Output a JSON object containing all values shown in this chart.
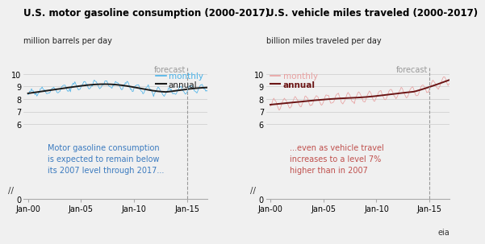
{
  "chart1_title": "U.S. motor gasoline consumption (2000-2017)",
  "chart1_ylabel": "million barrels per day",
  "chart1_annotation": "Motor gasoline consumption\nis expected to remain below\nits 2007 level through 2017...",
  "chart1_annotation_color": "#3a7abf",
  "chart1_monthly_color": "#4ab2e8",
  "chart1_annual_color": "#1a1a1a",
  "chart2_title": "U.S. vehicle miles traveled (2000-2017)",
  "chart2_ylabel": "billion miles traveled per day",
  "chart2_annotation": "...even as vehicle travel\nincreases to a level 7%\nhigher than in 2007",
  "chart2_annotation_color": "#c0504d",
  "chart2_monthly_color": "#e8a0a0",
  "chart2_annual_color": "#6b1515",
  "forecast_label": "forecast",
  "forecast_color": "#999999",
  "xtick_labels": [
    "Jan-00",
    "Jan-05",
    "Jan-10",
    "Jan-15"
  ],
  "bg_color": "#f0f0f0",
  "title_fontsize": 8.5,
  "sublabel_fontsize": 7,
  "axis_fontsize": 7,
  "legend_fontsize": 7.5,
  "annotation_fontsize": 7,
  "forecast_fontsize": 7
}
